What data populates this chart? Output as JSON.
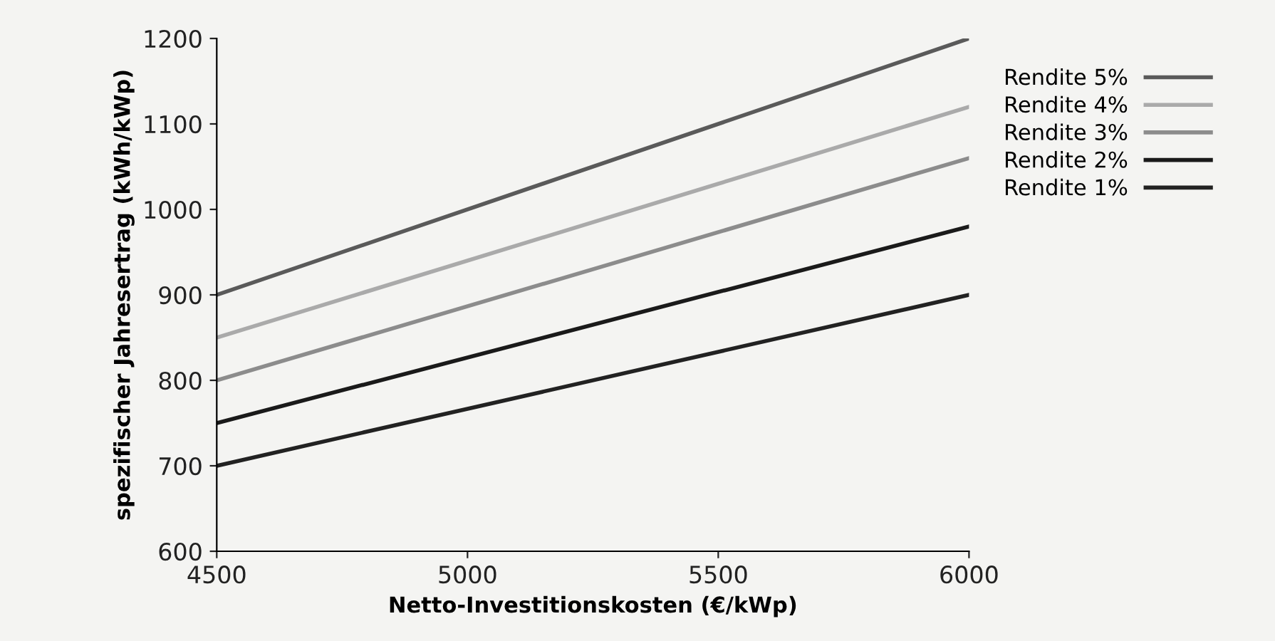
{
  "chart_data": {
    "type": "line",
    "xlabel": "Netto-Investitionskosten (€/kWp)",
    "ylabel": "spezifischer Jahresertrag (kWh/kWp)",
    "x": [
      4500,
      6000
    ],
    "series": [
      {
        "name": "Rendite 5%",
        "color": "#5a5a5a",
        "values": [
          900,
          1200
        ]
      },
      {
        "name": "Rendite 4%",
        "color": "#aaaaaa",
        "values": [
          850,
          1120
        ]
      },
      {
        "name": "Rendite 3%",
        "color": "#8c8c8c",
        "values": [
          800,
          1060
        ]
      },
      {
        "name": "Rendite 2%",
        "color": "#1a1a1a",
        "values": [
          750,
          980
        ]
      },
      {
        "name": "Rendite 1%",
        "color": "#222222",
        "values": [
          700,
          900
        ]
      }
    ],
    "xlim": [
      4500,
      6000
    ],
    "xticks": [
      4500,
      5000,
      5500,
      6000
    ],
    "ylim": [
      600,
      1200
    ],
    "yticks": [
      600,
      700,
      800,
      900,
      1000,
      1100,
      1200
    ],
    "grid": false,
    "legend": "right",
    "marker": "none",
    "line_style": "solid"
  }
}
